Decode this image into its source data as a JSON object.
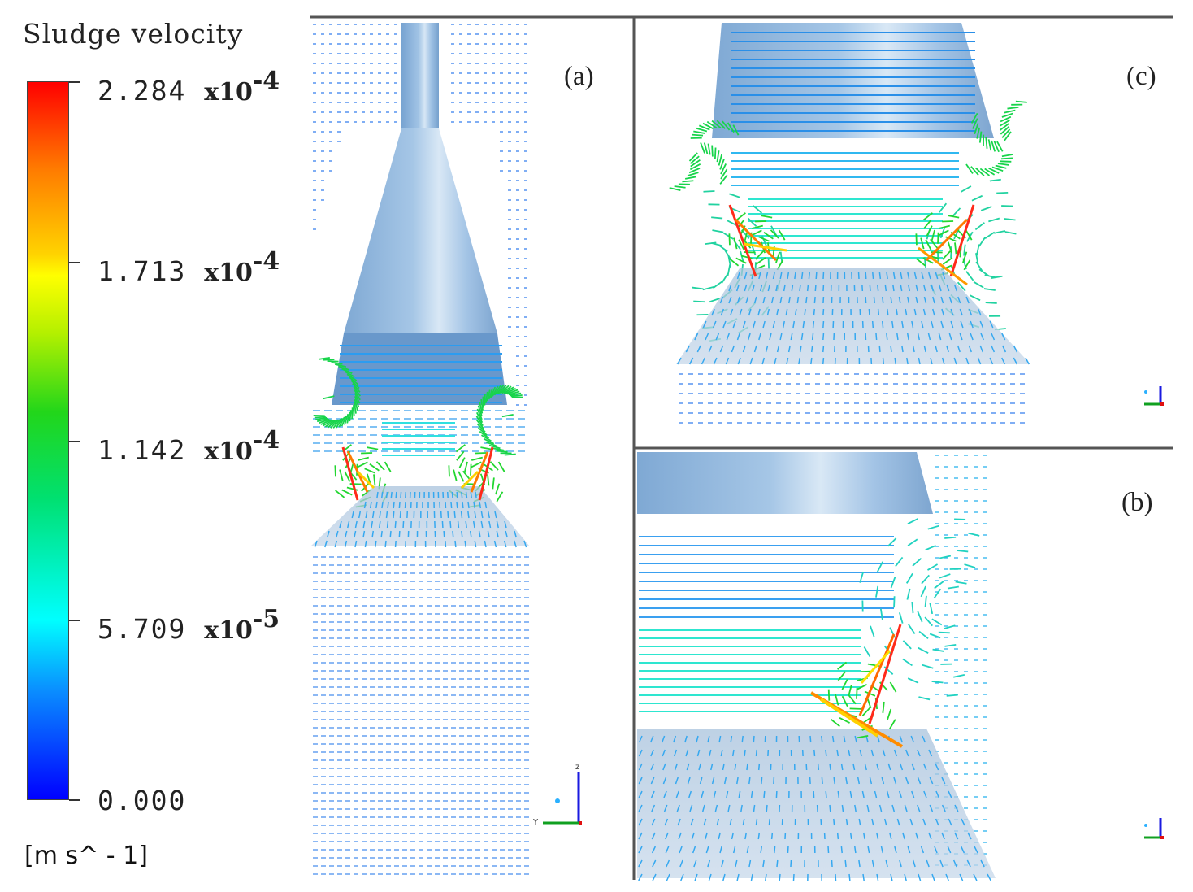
{
  "legend": {
    "title": "Sludge velocity",
    "ticks": [
      {
        "mantissa": "2.284",
        "exponent_base": "x10",
        "exponent": "-4"
      },
      {
        "mantissa": "1.713",
        "exponent_base": "x10",
        "exponent": "-4"
      },
      {
        "mantissa": "1.142",
        "exponent_base": "x10",
        "exponent": "-4"
      },
      {
        "mantissa": "5.709",
        "exponent_base": "x10",
        "exponent": "-5"
      },
      {
        "mantissa": "0.000",
        "exponent_base": "",
        "exponent": ""
      }
    ],
    "units": "[m  s^ - 1]",
    "colors": [
      "#ff0000",
      "#ff7a00",
      "#ffff00",
      "#22d61a",
      "#00ffff",
      "#0a8cff",
      "#0000ff"
    ]
  },
  "panels": {
    "a": {
      "label": "(a)"
    },
    "b": {
      "label": "(b)"
    },
    "c": {
      "label": "(c)"
    }
  },
  "triad": {
    "z_label": "z",
    "y_label": "Y",
    "x_label": "x"
  }
}
